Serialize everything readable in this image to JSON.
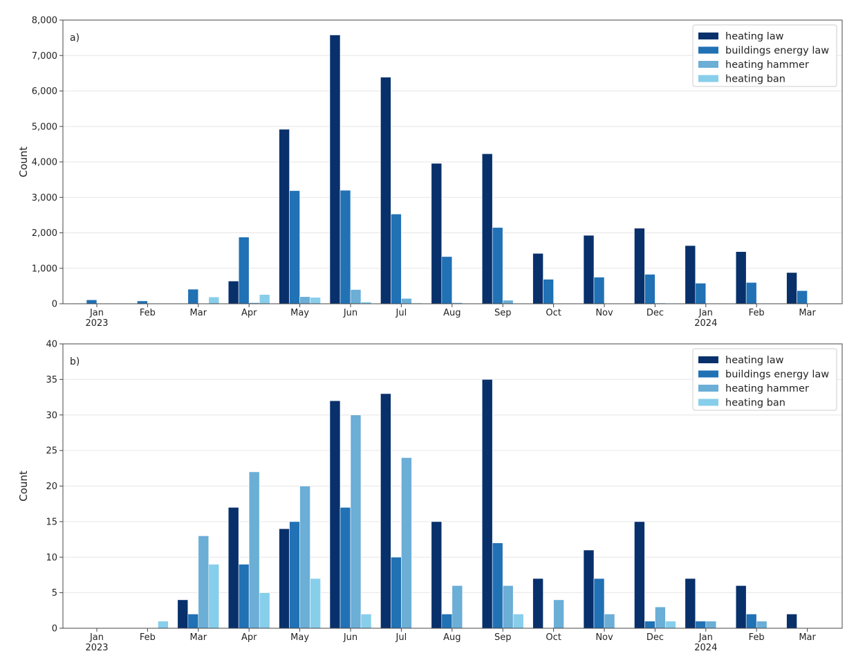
{
  "chart_data": [
    {
      "type": "bar",
      "panel_label": "a)",
      "ylabel": "Count",
      "ylim": [
        0,
        8000
      ],
      "yticks": [
        0,
        1000,
        2000,
        3000,
        4000,
        5000,
        6000,
        7000,
        8000
      ],
      "ytick_labels": [
        "0",
        "1,000",
        "2,000",
        "3,000",
        "4,000",
        "5,000",
        "6,000",
        "7,000",
        "8,000"
      ],
      "grid": "y",
      "legend_position": "top-right",
      "categories": [
        "Jan\n2023",
        "Feb",
        "Mar",
        "Apr",
        "May",
        "Jun",
        "Jul",
        "Aug",
        "Sep",
        "Oct",
        "Nov",
        "Dec",
        "Jan\n2024",
        "Feb",
        "Mar"
      ],
      "series": [
        {
          "name": "heating law",
          "color": "#08306b",
          "values": [
            0,
            0,
            0,
            640,
            4920,
            7580,
            6390,
            3960,
            4230,
            1420,
            1930,
            2130,
            1640,
            1470,
            880
          ]
        },
        {
          "name": "buildings energy law",
          "color": "#2171b5",
          "values": [
            110,
            80,
            410,
            1880,
            3190,
            3200,
            2530,
            1330,
            2150,
            690,
            750,
            830,
            580,
            600,
            370
          ]
        },
        {
          "name": "heating hammer",
          "color": "#6baed6",
          "values": [
            0,
            0,
            0,
            30,
            200,
            400,
            150,
            30,
            100,
            0,
            0,
            20,
            0,
            0,
            0
          ]
        },
        {
          "name": "heating ban",
          "color": "#87ceeb",
          "values": [
            0,
            0,
            190,
            260,
            180,
            50,
            20,
            0,
            0,
            0,
            0,
            0,
            0,
            0,
            0
          ]
        }
      ]
    },
    {
      "type": "bar",
      "panel_label": "b)",
      "ylabel": "Count",
      "ylim": [
        0,
        40
      ],
      "yticks": [
        0,
        5,
        10,
        15,
        20,
        25,
        30,
        35,
        40
      ],
      "ytick_labels": [
        "0",
        "5",
        "10",
        "15",
        "20",
        "25",
        "30",
        "35",
        "40"
      ],
      "grid": "y",
      "legend_position": "top-right",
      "categories": [
        "Jan\n2023",
        "Feb",
        "Mar",
        "Apr",
        "May",
        "Jun",
        "Jul",
        "Aug",
        "Sep",
        "Oct",
        "Nov",
        "Dec",
        "Jan\n2024",
        "Feb",
        "Mar"
      ],
      "series": [
        {
          "name": "heating law",
          "color": "#08306b",
          "values": [
            0,
            0,
            4,
            17,
            14,
            32,
            33,
            15,
            35,
            7,
            11,
            15,
            7,
            6,
            2
          ]
        },
        {
          "name": "buildings energy law",
          "color": "#2171b5",
          "values": [
            0,
            0,
            2,
            9,
            15,
            17,
            10,
            2,
            12,
            0,
            7,
            1,
            1,
            2,
            0
          ]
        },
        {
          "name": "heating hammer",
          "color": "#6baed6",
          "values": [
            0,
            0,
            13,
            22,
            20,
            30,
            24,
            6,
            6,
            4,
            2,
            3,
            1,
            1,
            0
          ]
        },
        {
          "name": "heating ban",
          "color": "#87ceeb",
          "values": [
            0,
            1,
            9,
            5,
            7,
            2,
            0,
            0,
            2,
            0,
            0,
            1,
            0,
            0,
            0
          ]
        }
      ]
    }
  ]
}
